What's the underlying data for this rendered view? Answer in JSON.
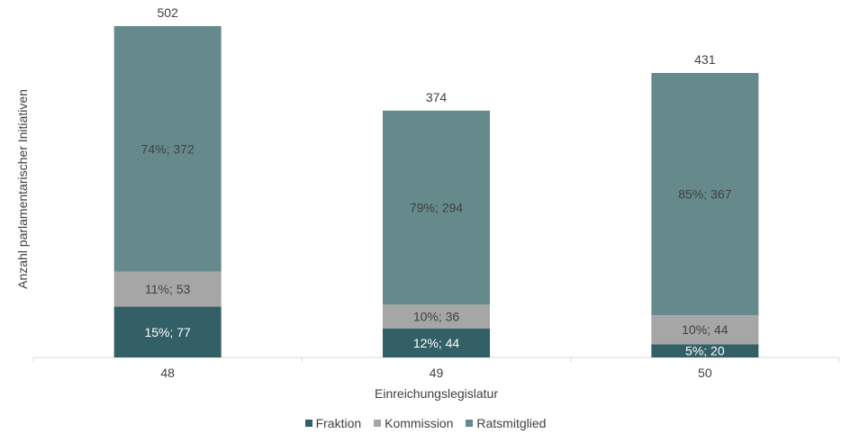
{
  "chart_data": {
    "type": "bar",
    "stacked": true,
    "xlabel": "Einreichungslegislatur",
    "ylabel": "Anzahl parlamentarischer Initiativen",
    "categories": [
      "48",
      "49",
      "50"
    ],
    "totals": [
      502,
      374,
      431
    ],
    "series": [
      {
        "name": "Fraktion",
        "color": "#335f66",
        "values": [
          77,
          44,
          20
        ],
        "labels": [
          "15%; 77",
          "12%; 44",
          "5%; 20"
        ]
      },
      {
        "name": "Kommission",
        "color": "#a6a6a6",
        "values": [
          53,
          36,
          44
        ],
        "labels": [
          "11%; 53",
          "10%; 36",
          "10%; 44"
        ]
      },
      {
        "name": "Ratsmitglied",
        "color": "#668a8b",
        "values": [
          372,
          294,
          367
        ],
        "labels": [
          "74%; 372",
          "79%; 294",
          "85%; 367"
        ]
      }
    ],
    "ylim": [
      0,
      502
    ],
    "grid": false,
    "legend_position": "bottom"
  }
}
